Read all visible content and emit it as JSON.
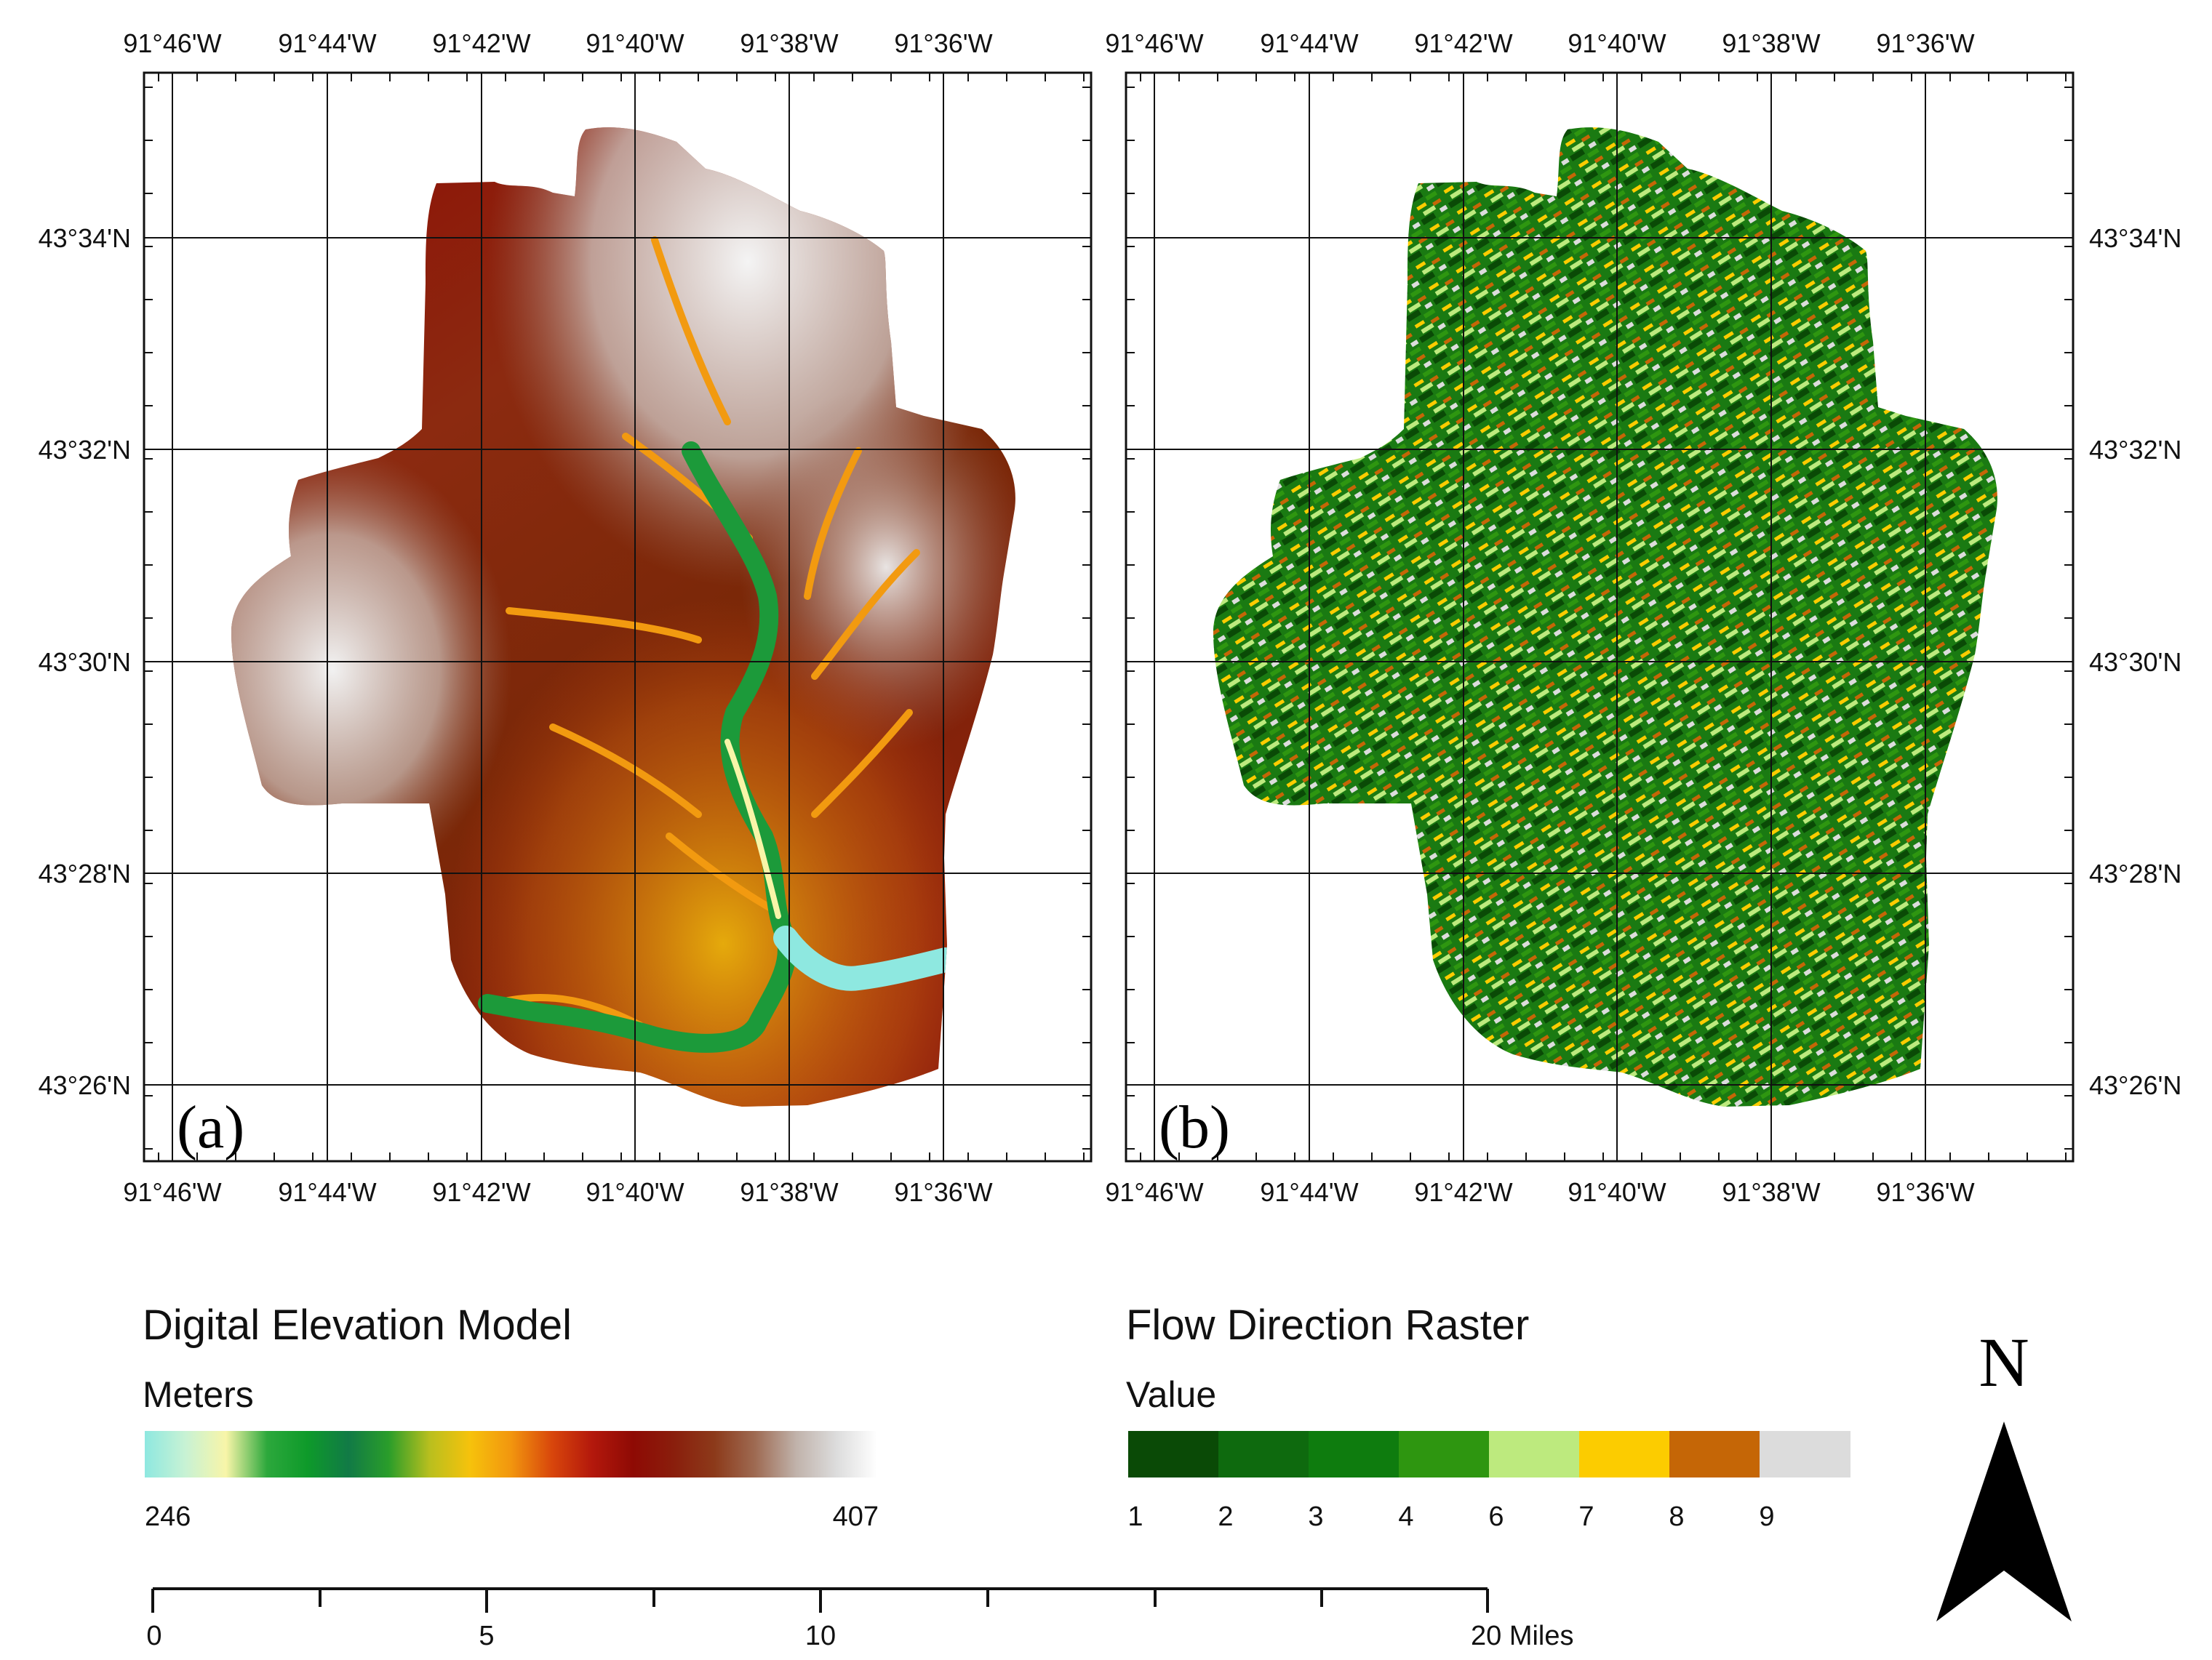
{
  "panels": [
    {
      "letter": "(a)",
      "top_labels": [
        "91°46'W",
        "91°44'W",
        "91°42'W",
        "91°40'W",
        "91°38'W",
        "91°36'W"
      ],
      "bottom_labels": [
        "91°46'W",
        "91°44'W",
        "91°42'W",
        "91°40'W",
        "91°38'W",
        "91°36'W"
      ],
      "lat_labels": [
        "43°34'N",
        "43°32'N",
        "43°30'N",
        "43°28'N",
        "43°26'N"
      ]
    },
    {
      "letter": "(b)",
      "top_labels": [
        "91°46'W",
        "91°44'W",
        "91°42'W",
        "91°40'W",
        "91°38'W",
        "91°36'W"
      ],
      "bottom_labels": [
        "91°46'W",
        "91°44'W",
        "91°42'W",
        "91°40'W",
        "91°38'W",
        "91°36'W"
      ],
      "lat_labels": [
        "43°34'N",
        "43°32'N",
        "43°30'N",
        "43°28'N",
        "43°26'N"
      ]
    }
  ],
  "legend_dem": {
    "title": "Digital Elevation Model",
    "subtitle": "Meters",
    "min_label": "246",
    "max_label": "407",
    "ramp_colors": [
      "#8ee8e0",
      "#c8f2d4",
      "#f8f5a8",
      "#2ca83c",
      "#0e9a2a",
      "#117a46",
      "#2a9d2a",
      "#b9bf1e",
      "#f6c20c",
      "#f2960e",
      "#d8460c",
      "#b3180c",
      "#8e0a04",
      "#8a1e0c",
      "#8c3a1a",
      "#9e6a52",
      "#c0b2aa",
      "#dcdcdc",
      "#ffffff"
    ]
  },
  "legend_flow": {
    "title": "Flow Direction Raster",
    "subtitle": "Value",
    "classes": [
      {
        "label": "1",
        "color": "#0a4a06"
      },
      {
        "label": "2",
        "color": "#0e6a0e"
      },
      {
        "label": "3",
        "color": "#0e7c0e"
      },
      {
        "label": "4",
        "color": "#2e9610"
      },
      {
        "label": "6",
        "color": "#bdea7e"
      },
      {
        "label": "7",
        "color": "#fccc00"
      },
      {
        "label": "8",
        "color": "#c56606"
      },
      {
        "label": "9",
        "color": "#dcdcdc"
      }
    ]
  },
  "scale_bar": {
    "labels": [
      "0",
      "5",
      "10",
      "20 Miles"
    ]
  },
  "north_arrow": {
    "label": "N"
  }
}
